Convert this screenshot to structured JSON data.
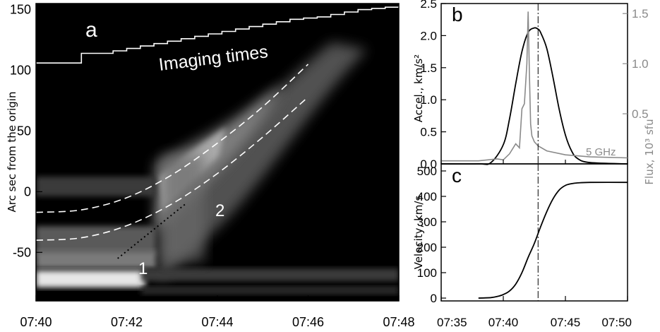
{
  "chart_data": [
    {
      "type": "heatmap",
      "panel_label": "a",
      "ylabel": "Arc sec from the origin",
      "xlim": [
        "07:40",
        "07:48"
      ],
      "ylim": [
        -90,
        155
      ],
      "x_ticks": [
        "07:40",
        "07:42",
        "07:44",
        "07:46",
        "07:48"
      ],
      "y_ticks": [
        -50,
        0,
        50,
        100,
        150
      ],
      "annotations": [
        "Imaging times",
        "1",
        "2"
      ],
      "imaging_times_steps": {
        "x_min": [
          0,
          1.0,
          1.7,
          2.0,
          2.3,
          2.6,
          2.9,
          3.2,
          3.5,
          3.8,
          4.1,
          4.4,
          4.7,
          5.0,
          5.3,
          5.6,
          5.9,
          6.2,
          6.5,
          6.8,
          7.1,
          7.4,
          7.7,
          8.0
        ],
        "y": [
          106,
          114,
          116,
          118,
          120,
          122,
          124,
          126,
          128,
          130,
          132,
          134,
          136,
          138,
          140,
          142,
          143,
          144,
          146,
          148,
          150,
          151,
          152,
          153
        ]
      },
      "dashed_upper": {
        "x_min": [
          0,
          1,
          2,
          3,
          4,
          5,
          6
        ],
        "y": [
          -17,
          -15,
          -5,
          14,
          40,
          70,
          105
        ]
      },
      "dashed_lower": {
        "x_min": [
          0,
          1,
          2,
          3,
          4,
          5,
          6
        ],
        "y": [
          -40,
          -38,
          -28,
          -10,
          15,
          45,
          78
        ]
      },
      "dotted_line": {
        "x_min": [
          1.8,
          3.3
        ],
        "y": [
          -55,
          -10
        ]
      }
    },
    {
      "type": "line",
      "panel_label": "b",
      "ylabel": "Accel.,  km/s²",
      "y2label": "Flux, 10³ sfu",
      "xlim": [
        35,
        50
      ],
      "ylim": [
        0,
        2.5
      ],
      "y2lim": [
        0,
        1.6
      ],
      "y_ticks": [
        "0.0",
        "0.5",
        "1.0",
        "1.5",
        "2.0",
        "2.5"
      ],
      "y2_ticks": [
        "0.5",
        "1.0",
        "1.5"
      ],
      "vline_x": 42.8,
      "series": [
        {
          "name": "",
          "color": "#000000",
          "axis": "left",
          "x": [
            35,
            38,
            39,
            40,
            40.5,
            41,
            41.5,
            42,
            42.5,
            42.8,
            43,
            43.5,
            44,
            44.5,
            45,
            45.5,
            46,
            47,
            50
          ],
          "y": [
            0,
            0,
            0.02,
            0.3,
            0.7,
            1.25,
            1.75,
            2.05,
            2.12,
            2.1,
            2.05,
            1.8,
            1.35,
            0.85,
            0.45,
            0.2,
            0.08,
            0.02,
            0
          ]
        },
        {
          "name": "5 GHz",
          "color": "#8a8a8a",
          "axis": "right",
          "x": [
            35,
            38,
            39.5,
            40,
            40.5,
            41,
            41.3,
            41.5,
            41.7,
            41.9,
            42.0,
            42.1,
            42.2,
            42.3,
            42.5,
            42.8,
            43.5,
            45,
            47,
            50
          ],
          "y": [
            0.03,
            0.03,
            0.05,
            0.04,
            0.1,
            0.2,
            0.16,
            0.55,
            0.6,
            1.0,
            1.52,
            0.9,
            0.4,
            0.28,
            0.22,
            0.18,
            0.13,
            0.09,
            0.07,
            0.06
          ]
        }
      ]
    },
    {
      "type": "line",
      "panel_label": "c",
      "ylabel": "Velocity,  km/s",
      "xlim": [
        35,
        50
      ],
      "ylim": [
        0,
        500
      ],
      "x_ticks": [
        "07:35",
        "07:40",
        "07:45",
        "07:50"
      ],
      "y_ticks": [
        "0",
        "100",
        "200",
        "300",
        "400",
        "500"
      ],
      "vline_x": 42.8,
      "series": [
        {
          "name": "",
          "color": "#000000",
          "x": [
            38,
            39,
            39.5,
            40,
            40.5,
            41,
            41.5,
            42,
            42.5,
            43,
            43.5,
            44,
            44.5,
            45,
            45.5,
            46,
            47,
            50
          ],
          "y": [
            0,
            2,
            6,
            14,
            28,
            55,
            100,
            160,
            215,
            280,
            340,
            390,
            425,
            443,
            450,
            453,
            455,
            455
          ]
        }
      ]
    }
  ]
}
